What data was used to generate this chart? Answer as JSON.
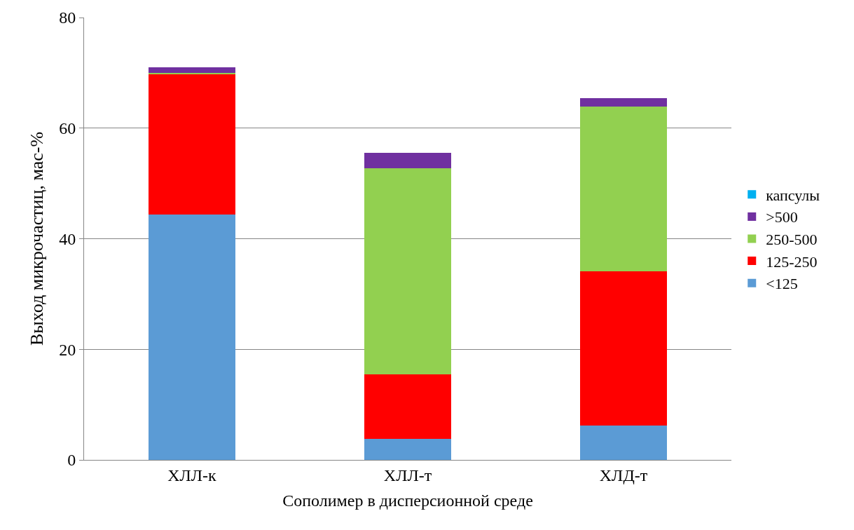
{
  "chart_data": {
    "type": "bar",
    "stacked": true,
    "xlabel": "Сополимер в дисперсионной среде",
    "ylabel": "Выход микрочастиц, мас-%",
    "categories": [
      "ХЛЛ-к",
      "ХЛЛ-т",
      "ХЛД-т"
    ],
    "series": [
      {
        "name": "<125",
        "color": "#5b9bd5",
        "values": [
          44.4,
          3.8,
          6.2
        ]
      },
      {
        "name": "125-250",
        "color": "#ff0000",
        "values": [
          25.4,
          11.7,
          27.9
        ]
      },
      {
        "name": "250-500",
        "color": "#92d050",
        "values": [
          0.2,
          37.2,
          29.8
        ]
      },
      {
        "name": ">500",
        "color": "#7030a0",
        "values": [
          1.0,
          2.8,
          1.5
        ]
      },
      {
        "name": "капсулы",
        "color": "#00b0f0",
        "values": [
          0,
          0,
          0
        ]
      }
    ],
    "ylim": [
      0,
      80
    ],
    "yticks": [
      0,
      20,
      40,
      60,
      80
    ],
    "grid": "y",
    "legend": "right"
  }
}
